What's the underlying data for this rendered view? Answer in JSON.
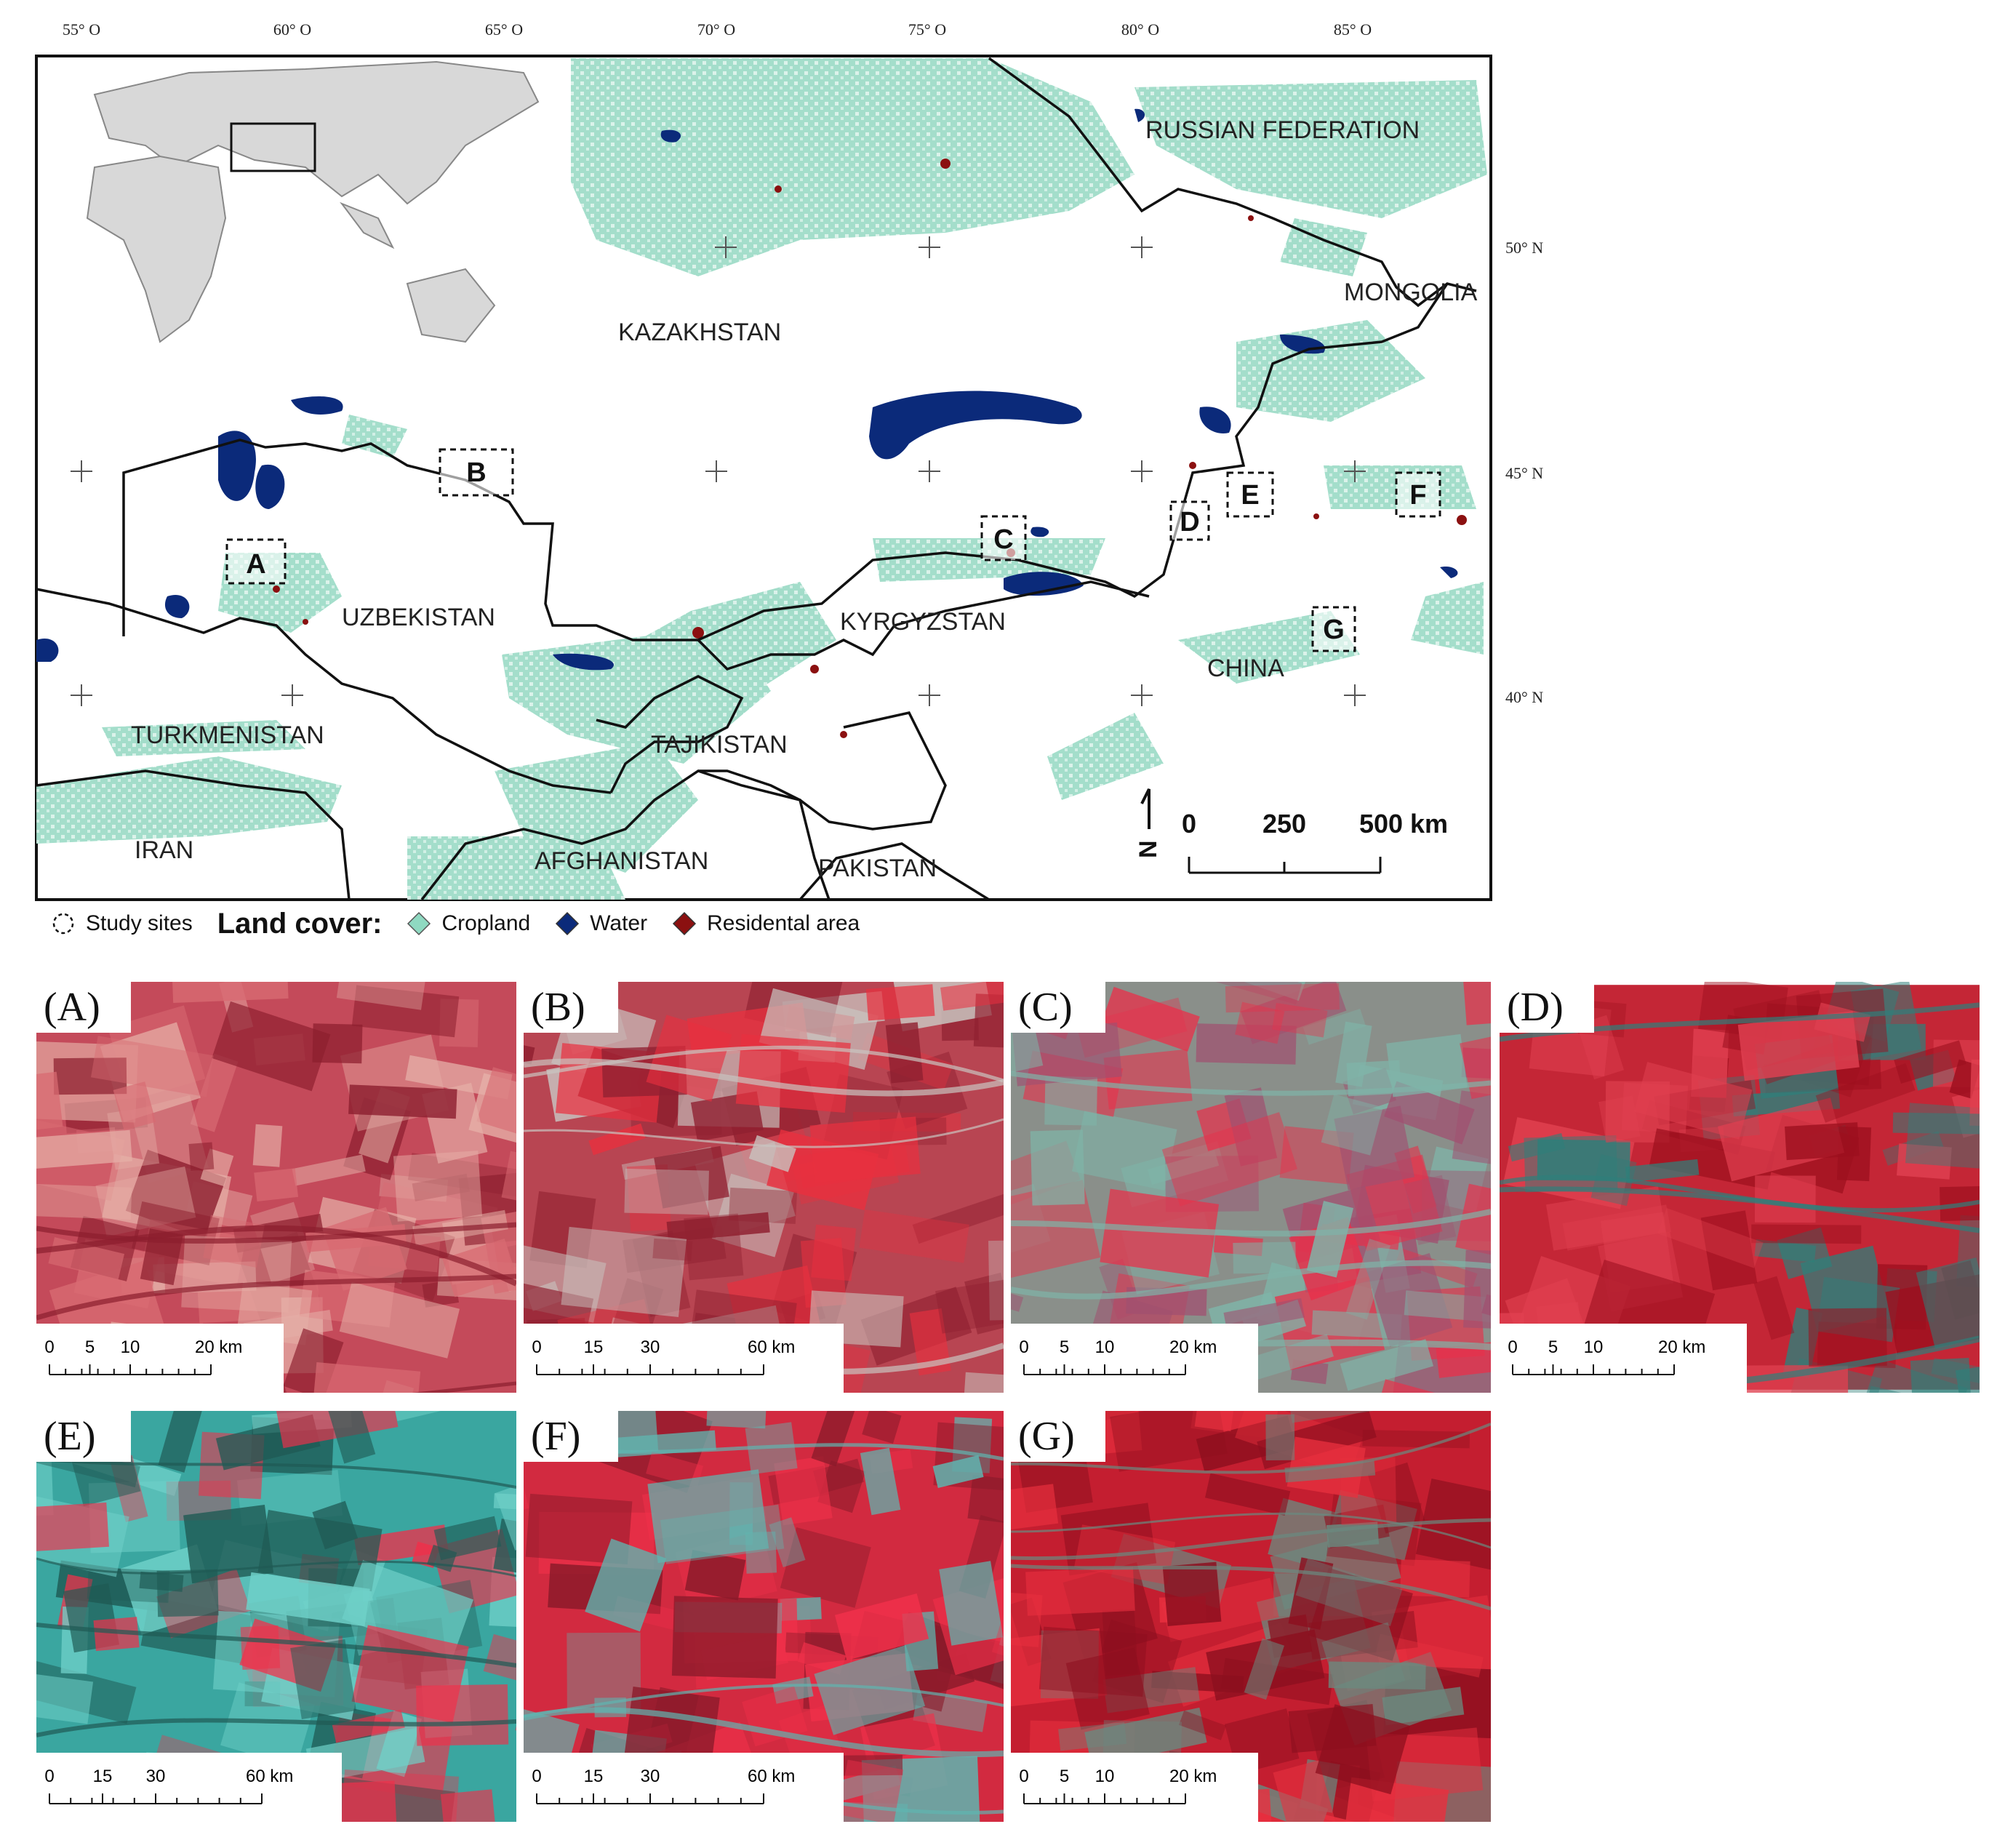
{
  "map": {
    "longitude_labels": [
      "55° O",
      "60° O",
      "65° O",
      "70° O",
      "75° O",
      "80° O",
      "85° O"
    ],
    "latitude_labels": [
      "50° N",
      "45° N",
      "40° N"
    ],
    "countries": [
      "RUSSIAN FEDERATION",
      "KAZAKHSTAN",
      "MONGOLIA",
      "UZBEKISTAN",
      "KYRGYZSTAN",
      "CHINA",
      "TURKMENISTAN",
      "TAJIKISTAN",
      "IRAN",
      "AFGHANISTAN",
      "PAKISTAN"
    ],
    "study_sites": [
      "A",
      "B",
      "C",
      "D",
      "E",
      "F",
      "G"
    ],
    "scale_bar": {
      "ticks": [
        "0",
        "250",
        "500 km"
      ]
    },
    "north_arrow": "N",
    "colors": {
      "cropland": "#8fd9c1",
      "water": "#0b2a7a",
      "residential": "#8b1010",
      "border": "#111111"
    }
  },
  "legend": {
    "study_sites_label": "Study sites",
    "title": "Land cover:",
    "items": [
      {
        "label": "Cropland",
        "color": "#8fd9c1"
      },
      {
        "label": "Water",
        "color": "#0b2a7a"
      },
      {
        "label": "Residental area",
        "color": "#8b1010"
      }
    ]
  },
  "panels": [
    {
      "label": "(A)",
      "scale": [
        "0",
        "5",
        "10",
        "20 km"
      ]
    },
    {
      "label": "(B)",
      "scale": [
        "0",
        "15",
        "30",
        "60 km"
      ]
    },
    {
      "label": "(C)",
      "scale": [
        "0",
        "5",
        "10",
        "20 km"
      ]
    },
    {
      "label": "(D)",
      "scale": [
        "0",
        "5",
        "10",
        "20 km"
      ]
    },
    {
      "label": "(E)",
      "scale": [
        "0",
        "15",
        "30",
        "60 km"
      ]
    },
    {
      "label": "(F)",
      "scale": [
        "0",
        "15",
        "30",
        "60 km"
      ]
    },
    {
      "label": "(G)",
      "scale": [
        "0",
        "5",
        "10",
        "20 km"
      ]
    }
  ]
}
